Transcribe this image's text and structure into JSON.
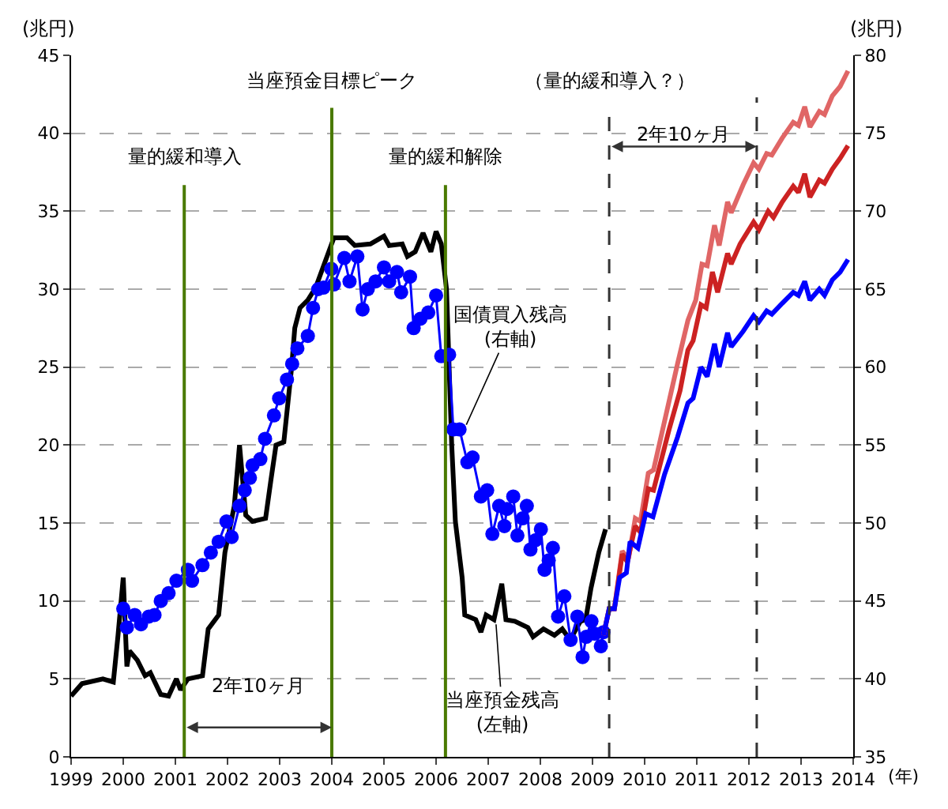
{
  "chart_data": {
    "type": "line",
    "xlabel": "(年)",
    "ylabel": "(兆円)",
    "y2label": "(兆円)",
    "xlim": [
      1999,
      2014
    ],
    "xticks": [
      1999,
      2000,
      2001,
      2002,
      2003,
      2004,
      2005,
      2006,
      2007,
      2008,
      2009,
      2010,
      2011,
      2012,
      2013,
      2014
    ],
    "ylim": [
      0,
      45
    ],
    "yticks": [
      0,
      5,
      10,
      15,
      20,
      25,
      30,
      35,
      40,
      45
    ],
    "y2lim": [
      35,
      80
    ],
    "y2ticks": [
      35,
      40,
      45,
      50,
      55,
      60,
      65,
      70,
      75,
      80
    ],
    "grid": "y",
    "series": [
      {
        "color": "#000000",
        "marker": "none",
        "x": [
          1999.0,
          1999.21,
          1999.61,
          1999.81,
          1999.9,
          2000.0,
          2000.07,
          2000.12,
          2000.27,
          2000.42,
          2000.52,
          2000.72,
          2000.87,
          2001.02,
          2001.1,
          2001.24,
          2001.52,
          2001.63,
          2001.83,
          2001.95,
          2002.13,
          2002.23,
          2002.35,
          2002.48,
          2002.73,
          2002.83,
          2002.93,
          2003.08,
          2003.23,
          2003.29,
          2003.39,
          2003.54,
          2003.69,
          2004.04,
          2004.29,
          2004.44,
          2004.74,
          2005.0,
          2005.1,
          2005.35,
          2005.45,
          2005.6,
          2005.75,
          2005.9,
          2006.0,
          2006.1,
          2006.2,
          2006.3,
          2006.37,
          2006.5,
          2006.55,
          2006.76,
          2006.86,
          2006.96,
          2007.11,
          2007.26,
          2007.34,
          2007.51,
          2007.76,
          2007.86,
          2008.06,
          2008.27,
          2008.42,
          2008.57,
          2008.77,
          2008.87,
          2008.97,
          2009.12,
          2009.25
        ],
        "values": [
          3.9,
          4.7,
          5.0,
          4.8,
          7.8,
          11.5,
          5.8,
          6.8,
          6.2,
          5.2,
          5.4,
          4.0,
          3.9,
          5.0,
          4.3,
          5.0,
          5.2,
          8.2,
          9.1,
          13.1,
          16.1,
          20.0,
          15.5,
          15.1,
          15.3,
          17.7,
          20.0,
          20.2,
          25.0,
          27.5,
          28.8,
          29.3,
          30.1,
          33.3,
          33.3,
          32.8,
          32.9,
          33.4,
          32.8,
          32.9,
          32.1,
          32.4,
          33.6,
          32.4,
          33.7,
          32.9,
          30.0,
          20.0,
          15.1,
          11.5,
          9.1,
          8.8,
          8.0,
          9.1,
          8.8,
          11.1,
          8.8,
          8.7,
          8.3,
          7.7,
          8.2,
          7.8,
          8.2,
          7.5,
          8.7,
          8.8,
          10.8,
          13.1,
          14.6
        ]
      },
      {
        "color": "#0000ff",
        "marker": "circle",
        "axis": "y2",
        "x": [
          2000.0,
          2000.07,
          2000.22,
          2000.34,
          2000.49,
          2000.6,
          2000.72,
          2000.87,
          2001.02,
          2001.24,
          2001.32,
          2001.52,
          2001.68,
          2001.83,
          2001.98,
          2002.08,
          2002.23,
          2002.33,
          2002.43,
          2002.48,
          2002.63,
          2002.72,
          2002.89,
          2002.99,
          2003.14,
          2003.24,
          2003.34,
          2003.54,
          2003.64,
          2003.74,
          2003.84,
          2003.99,
          2004.04,
          2004.24,
          2004.34,
          2004.49,
          2004.59,
          2004.69,
          2004.84,
          2005.0,
          2005.1,
          2005.25,
          2005.33,
          2005.5,
          2005.57,
          2005.7,
          2005.85,
          2006.0,
          2006.1,
          2006.25,
          2006.33,
          2006.45,
          2006.6,
          2006.7,
          2006.86,
          2006.98,
          2007.08,
          2007.21,
          2007.31,
          2007.36,
          2007.48,
          2007.56,
          2007.66,
          2007.74,
          2007.81,
          2007.91,
          2008.01,
          2008.08,
          2008.16,
          2008.24,
          2008.34,
          2008.46,
          2008.58,
          2008.71,
          2008.81,
          2008.88,
          2008.98,
          2009.04,
          2009.16,
          2009.21
        ],
        "values": [
          44.5,
          43.3,
          44.1,
          43.5,
          44.0,
          44.1,
          45.0,
          45.5,
          46.3,
          47.0,
          46.3,
          47.3,
          48.1,
          48.8,
          50.1,
          49.1,
          51.1,
          52.1,
          52.9,
          53.7,
          54.1,
          55.4,
          56.9,
          58.0,
          59.2,
          60.2,
          61.2,
          62.0,
          63.8,
          65.0,
          65.1,
          66.3,
          65.3,
          67.0,
          65.5,
          67.1,
          63.7,
          65.0,
          65.5,
          66.4,
          65.5,
          66.1,
          64.8,
          65.8,
          62.5,
          63.1,
          63.5,
          64.6,
          60.7,
          60.8,
          56.0,
          56.0,
          53.9,
          54.2,
          51.7,
          52.1,
          49.3,
          51.1,
          49.8,
          50.9,
          51.7,
          49.2,
          50.3,
          51.1,
          48.3,
          48.9,
          49.6,
          47.0,
          47.6,
          48.4,
          44.0,
          45.3,
          42.5,
          44.0,
          41.4,
          42.7,
          43.7,
          42.9,
          42.1,
          43.0
        ]
      },
      {
        "color": "#e06666",
        "marker": "none",
        "axis": "y2",
        "x": [
          2009.21,
          2009.32,
          2009.42,
          2009.57,
          2009.69,
          2009.82,
          2009.92,
          2010.07,
          2010.17,
          2010.38,
          2010.63,
          2010.83,
          2010.98,
          2011.1,
          2011.2,
          2011.34,
          2011.43,
          2011.59,
          2011.66,
          2011.89,
          2012.09,
          2012.19,
          2012.34,
          2012.44,
          2012.64,
          2012.85,
          2012.95,
          2013.07,
          2013.17,
          2013.35,
          2013.45,
          2013.6,
          2013.75,
          2013.9
        ],
        "values": [
          42.8,
          44.5,
          44.5,
          48.2,
          47.7,
          50.3,
          50.1,
          53.2,
          53.4,
          56.5,
          60.2,
          63.0,
          64.3,
          66.6,
          66.5,
          69.1,
          67.8,
          70.6,
          69.9,
          71.7,
          73.1,
          72.7,
          73.7,
          73.6,
          74.7,
          75.7,
          75.5,
          76.7,
          75.4,
          76.4,
          76.2,
          77.4,
          78.0,
          79.0
        ]
      },
      {
        "color": "#cc2222",
        "marker": "none",
        "axis": "y2",
        "x": [
          2009.21,
          2009.32,
          2009.42,
          2009.57,
          2009.67,
          2009.82,
          2009.92,
          2010.07,
          2010.17,
          2010.47,
          2010.68,
          2010.83,
          2010.93,
          2011.08,
          2011.18,
          2011.3,
          2011.4,
          2011.59,
          2011.66,
          2011.83,
          2012.09,
          2012.19,
          2012.37,
          2012.47,
          2012.64,
          2012.85,
          2012.95,
          2013.07,
          2013.17,
          2013.35,
          2013.45,
          2013.6,
          2013.75,
          2013.9
        ],
        "values": [
          42.8,
          44.5,
          44.5,
          48.0,
          47.5,
          49.8,
          49.4,
          52.2,
          52.1,
          56.0,
          58.5,
          61.1,
          61.7,
          64.0,
          63.8,
          66.1,
          64.8,
          67.3,
          66.6,
          67.9,
          69.3,
          68.8,
          70.0,
          69.6,
          70.6,
          71.6,
          71.2,
          72.4,
          70.9,
          72.0,
          71.8,
          72.7,
          73.4,
          74.2
        ]
      },
      {
        "color": "#0000ff",
        "marker": "none",
        "axis": "y2",
        "x": [
          2009.21,
          2009.32,
          2009.42,
          2009.52,
          2009.65,
          2009.72,
          2009.87,
          2010.02,
          2010.16,
          2010.38,
          2010.63,
          2010.83,
          2010.93,
          2011.08,
          2011.2,
          2011.34,
          2011.43,
          2011.59,
          2011.66,
          2011.89,
          2012.09,
          2012.19,
          2012.34,
          2012.44,
          2012.64,
          2012.85,
          2012.95,
          2013.07,
          2013.17,
          2013.35,
          2013.45,
          2013.6,
          2013.75,
          2013.9
        ],
        "values": [
          42.8,
          44.5,
          44.5,
          46.5,
          46.8,
          48.8,
          48.4,
          50.6,
          50.4,
          53.1,
          55.5,
          57.7,
          58.0,
          60.0,
          59.4,
          61.5,
          60.0,
          62.2,
          61.3,
          62.3,
          63.3,
          62.9,
          63.6,
          63.4,
          64.1,
          64.8,
          64.6,
          65.5,
          64.3,
          65.0,
          64.6,
          65.6,
          66.1,
          66.9
        ]
      }
    ],
    "ref_lines": [
      {
        "axis": "x",
        "value": 2001.17,
        "label": "量的緩和導入",
        "color": "#4a7a00",
        "line_style": "solid"
      },
      {
        "axis": "x",
        "value": 2004.0,
        "label": "当座預金目標ピーク",
        "color": "#4a7a00",
        "line_style": "solid"
      },
      {
        "axis": "x",
        "value": 2006.18,
        "label": "量的緩和解除",
        "color": "#4a7a00",
        "line_style": "solid"
      },
      {
        "axis": "x",
        "value": 2009.32,
        "label": "（量的緩和導入？）",
        "color": "#333333",
        "line_style": "dashed"
      },
      {
        "axis": "x",
        "value": 2012.15,
        "label": null,
        "color": "#333333",
        "line_style": "dashed"
      }
    ],
    "annotations": [
      "2年10ヶ月",
      "2年10ヶ月",
      {
        "text": "国債買入残高\n(右軸)",
        "x": 2006.58,
        "y": 21.3
      },
      {
        "text": "当座預金残高\n(左軸)",
        "x": 2007.15,
        "y": 8.5
      }
    ]
  }
}
